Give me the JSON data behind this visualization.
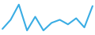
{
  "x": [
    0,
    1,
    2,
    3,
    4,
    5,
    6,
    7,
    8,
    9,
    10,
    11
  ],
  "y": [
    1.5,
    4.5,
    9.5,
    1.0,
    5.5,
    1.0,
    3.5,
    4.5,
    3.0,
    5.0,
    2.0,
    9.0
  ],
  "line_color": "#3aade4",
  "line_width": 1.5,
  "background_color": "#ffffff"
}
